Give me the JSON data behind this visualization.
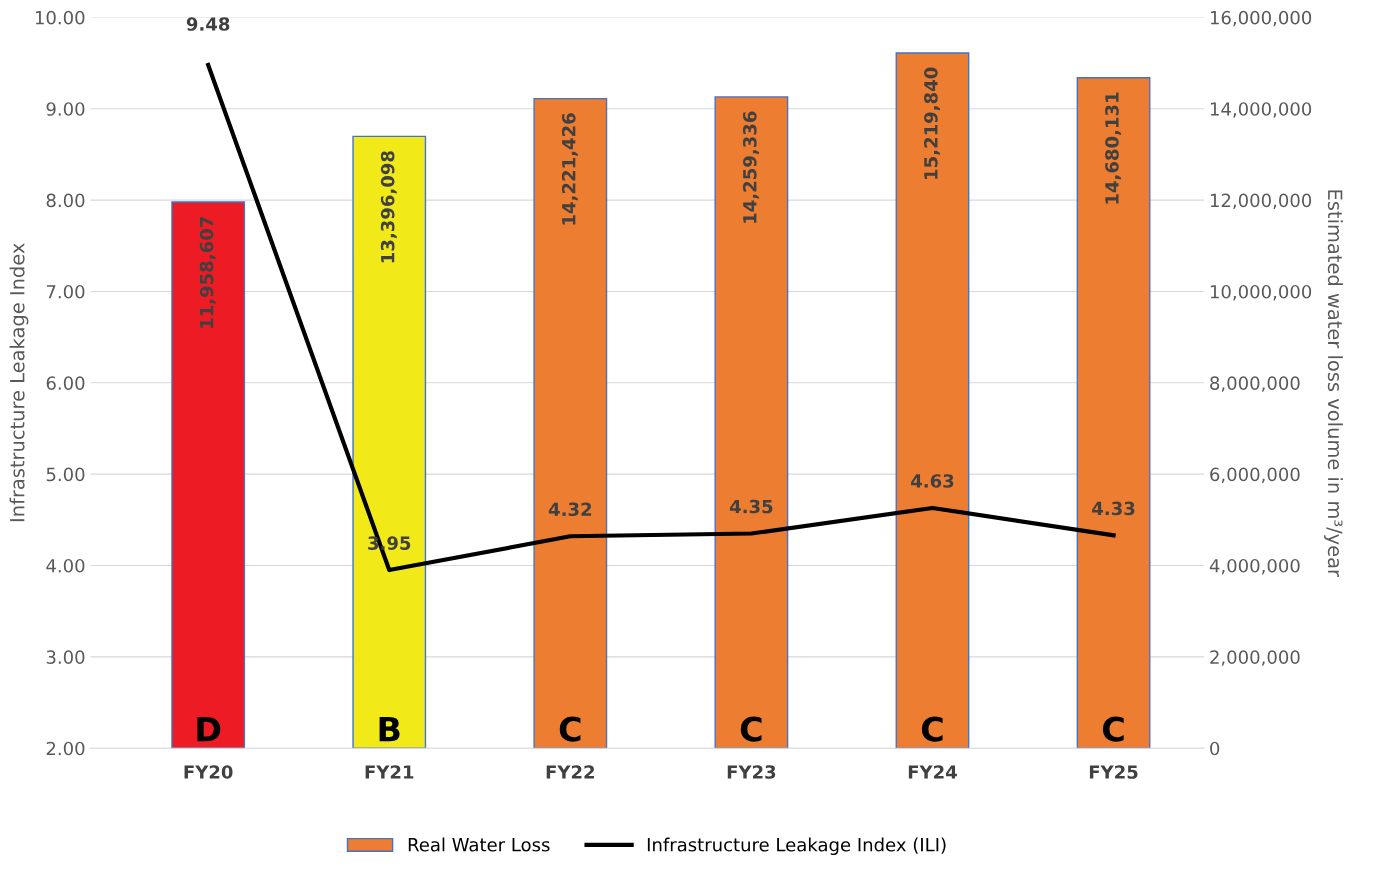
{
  "chart_data": {
    "type": "bar",
    "categories": [
      "FY20",
      "FY21",
      "FY22",
      "FY23",
      "FY24",
      "FY25"
    ],
    "series": [
      {
        "name": "Real Water Loss",
        "axis": "y2",
        "color": "#ed7d31",
        "colors": [
          "#ed1c24",
          "#f2e918",
          "#ed7d31",
          "#ed7d31",
          "#ed7d31",
          "#ed7d31"
        ],
        "values": [
          11958607,
          13396098,
          14221426,
          14259336,
          15219840,
          14680131
        ],
        "value_labels": [
          "11,958,607",
          "13,396,098",
          "14,221,426",
          "14,259,336",
          "15,219,840",
          "14,680,131"
        ]
      },
      {
        "name": "Infrastructure Leakage Index (ILI)",
        "type": "line",
        "axis": "y",
        "color": "#000000",
        "values": [
          9.48,
          3.95,
          4.32,
          4.35,
          4.63,
          4.33
        ],
        "value_labels": [
          "9.48",
          "3.95",
          "4.32",
          "4.35",
          "4.63",
          "4.33"
        ]
      }
    ],
    "ylabel": "Infrastructure Leakage Index",
    "y2label": "Estimated water loss volume in m³/year",
    "ylim": [
      2,
      10
    ],
    "yticks": [
      {
        "value": 2,
        "label": "2.00"
      },
      {
        "value": 3,
        "label": "3.00"
      },
      {
        "value": 4,
        "label": "4.00"
      },
      {
        "value": 5,
        "label": "5.00"
      },
      {
        "value": 6,
        "label": "6.00"
      },
      {
        "value": 7,
        "label": "7.00"
      },
      {
        "value": 8,
        "label": "8.00"
      },
      {
        "value": 9,
        "label": "9.00"
      },
      {
        "value": 10,
        "label": "10.00"
      }
    ],
    "y2lim": [
      0,
      16000000
    ],
    "y2ticks": [
      0,
      {
        "value": 2000000,
        "label": "2,000,000"
      },
      {
        "value": 4000000,
        "label": "4,000,000"
      },
      {
        "value": 6000000,
        "label": "6,000,000"
      },
      {
        "value": 8000000,
        "label": "8,000,000"
      },
      {
        "value": 10000000,
        "label": "10,000,000"
      },
      {
        "value": 12000000,
        "label": "12,000,000"
      },
      {
        "value": 14000000,
        "label": "14,000,000"
      },
      {
        "value": 16000000,
        "label": "16,000,000"
      }
    ],
    "annotations": [
      "D",
      "B",
      "C",
      "C",
      "C",
      "C"
    ],
    "grid": "y",
    "legend": "bottom",
    "marker": "none",
    "line_style": "solid"
  }
}
